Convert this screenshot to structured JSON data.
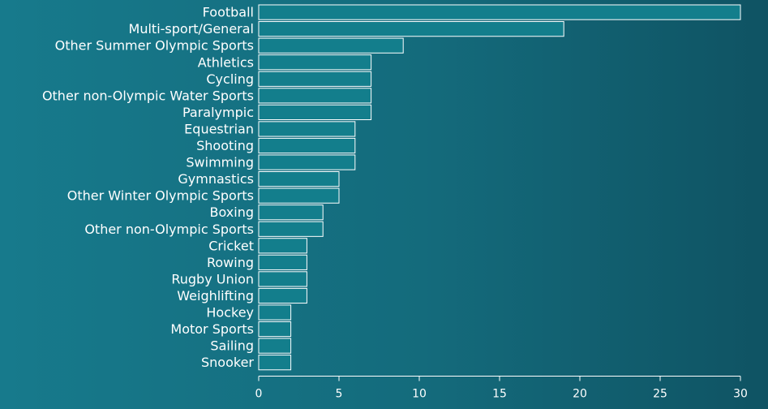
{
  "colors": {
    "bar_fill": "#137e8c",
    "bar_stroke": "#ffffff",
    "axis": "#ffffff",
    "text": "#ffffff"
  },
  "chart_data": {
    "type": "bar",
    "orientation": "horizontal",
    "categories": [
      "Football",
      "Multi-sport/General",
      "Other Summer Olympic Sports",
      "Athletics",
      "Cycling",
      "Other non-Olympic Water Sports",
      "Paralympic",
      "Equestrian",
      "Shooting",
      "Swimming",
      "Gymnastics",
      "Other Winter Olympic Sports",
      "Boxing",
      "Other non-Olympic Sports",
      "Cricket",
      "Rowing",
      "Rugby Union",
      "Weighlifting",
      "Hockey",
      "Motor Sports",
      "Sailing",
      "Snooker"
    ],
    "values": [
      30,
      19,
      9,
      7,
      7,
      7,
      7,
      6,
      6,
      6,
      5,
      5,
      4,
      4,
      3,
      3,
      3,
      3,
      2,
      2,
      2,
      2
    ],
    "xlim": [
      0,
      30
    ],
    "xticks": [
      0,
      5,
      10,
      15,
      20,
      25,
      30
    ],
    "title": "",
    "xlabel": "",
    "ylabel": "",
    "grid": false,
    "legend": "none"
  }
}
